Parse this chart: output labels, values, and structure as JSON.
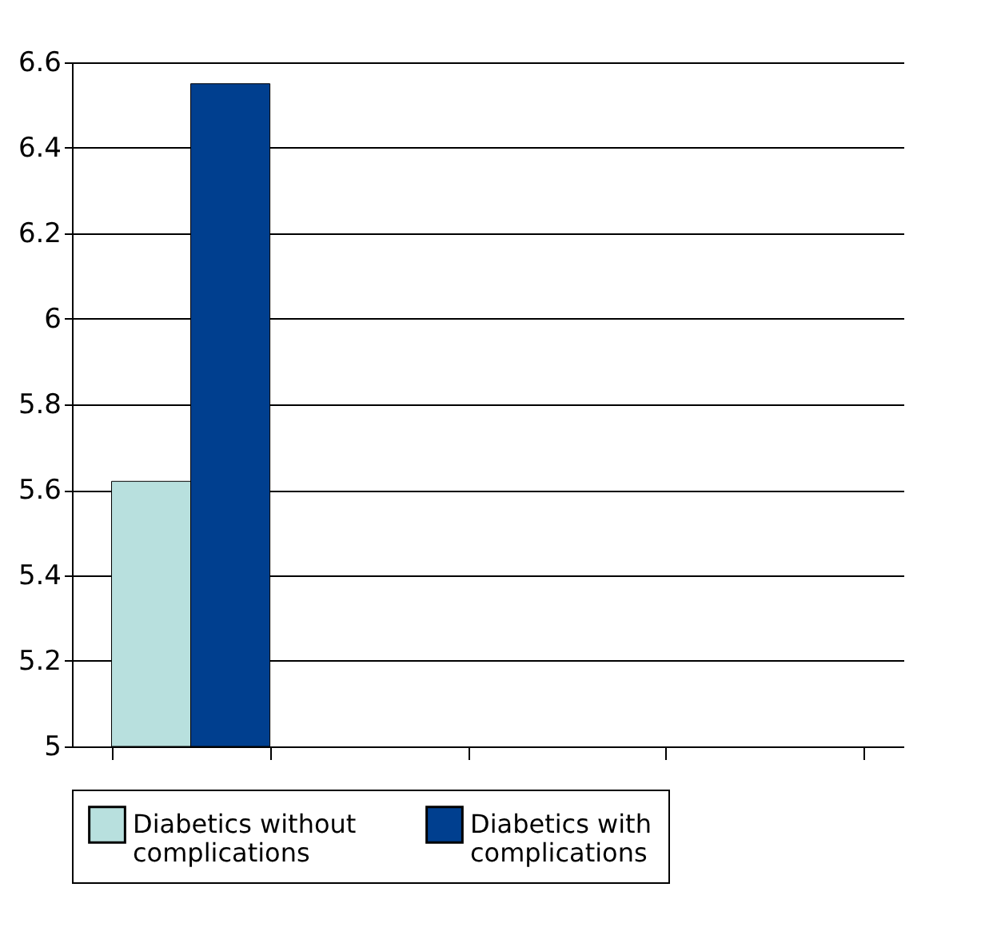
{
  "chart_data": {
    "type": "bar",
    "categories": [
      null,
      null,
      null,
      null
    ],
    "series": [
      {
        "name": "Diabetics without complications",
        "color": "#b8e0de",
        "values": [
          5.62,
          null,
          null,
          null
        ]
      },
      {
        "name": "Diabetics with complications",
        "color": "#003f8f",
        "values": [
          6.55,
          null,
          null,
          null
        ]
      }
    ],
    "ylim": [
      5,
      6.6
    ],
    "yticks": [
      5,
      5.2,
      5.4,
      5.6,
      5.8,
      6,
      6.2,
      6.4,
      6.6
    ],
    "grid": "y",
    "legend": "bottom",
    "tick_labels": "y"
  }
}
